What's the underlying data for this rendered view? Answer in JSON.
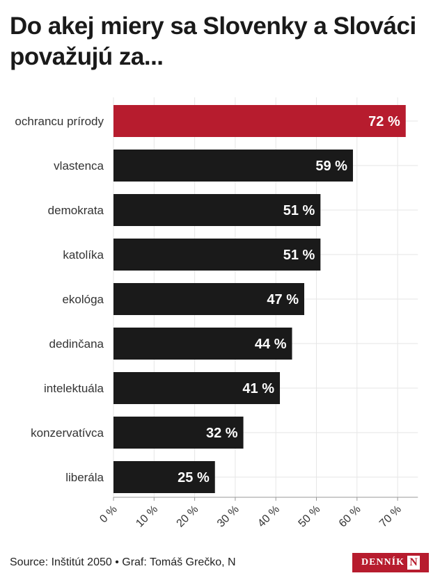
{
  "title": "Do akej miery sa Slovenky a Slováci považujú za...",
  "footer": {
    "source": "Source: Inštitút 2050 • Graf: Tomáš Grečko, N"
  },
  "logo": {
    "text": "DENNÍK",
    "mark": "N"
  },
  "colors": {
    "highlight": "#b71c2e",
    "bar": "#1a1a1a",
    "grid": "#e6e6e6"
  },
  "chart_data": {
    "type": "bar",
    "orientation": "horizontal",
    "categories": [
      "ochrancu prírody",
      "vlastenca",
      "demokrata",
      "katolíka",
      "ekológa",
      "dedinčana",
      "intelektuála",
      "konzervatívca",
      "liberála"
    ],
    "values": [
      72,
      59,
      51,
      51,
      47,
      44,
      41,
      32,
      25
    ],
    "data_labels": [
      "72 %",
      "59 %",
      "51 %",
      "51 %",
      "47 %",
      "44 %",
      "41 %",
      "32 %",
      "25 %"
    ],
    "highlight_index": 0,
    "xlim": [
      0,
      75
    ],
    "xticks": [
      0,
      10,
      20,
      30,
      40,
      50,
      60,
      70
    ],
    "xtick_labels": [
      "0 %",
      "10 %",
      "20 %",
      "30 %",
      "40 %",
      "50 %",
      "60 %",
      "70 %"
    ],
    "grid": true
  }
}
